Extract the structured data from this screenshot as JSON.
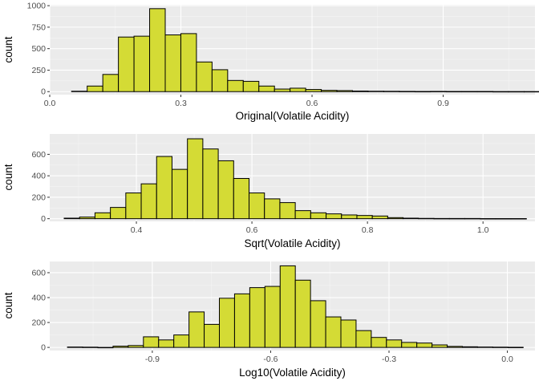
{
  "panel_bg": "#EBEBEB",
  "grid_major": "#FFFFFF",
  "bar_fill": "#D4DB35",
  "bar_stroke": "#000000",
  "chart_data": [
    {
      "type": "bar",
      "xlabel": "Original(Volatile Acidity)",
      "ylabel": "count",
      "xlim": [
        0.0,
        1.11
      ],
      "ylim": [
        -35,
        1010
      ],
      "xticks": [
        0.0,
        0.3,
        0.6,
        0.9
      ],
      "xtick_labels": [
        "0.0",
        "0.3",
        "0.6",
        "0.9"
      ],
      "yticks": [
        0,
        250,
        500,
        750,
        1000
      ],
      "ytick_labels": [
        "0",
        "250",
        "500",
        "750",
        "1000"
      ],
      "bins": {
        "start": 0.05,
        "width": 0.0357,
        "counts": [
          5,
          65,
          200,
          635,
          645,
          965,
          660,
          675,
          345,
          255,
          130,
          120,
          65,
          30,
          40,
          25,
          15,
          12,
          7,
          5,
          4,
          3,
          2,
          3,
          2,
          2,
          2,
          1,
          1,
          1
        ]
      }
    },
    {
      "type": "bar",
      "xlabel": "Sqrt(Volatile Acidity)",
      "ylabel": "count",
      "xlim": [
        0.25,
        1.09
      ],
      "ylim": [
        -25,
        790
      ],
      "xticks": [
        0.4,
        0.6,
        0.8,
        1.0
      ],
      "xtick_labels": [
        "0.4",
        "0.6",
        "0.8",
        "1.0"
      ],
      "yticks": [
        0,
        200,
        400,
        600
      ],
      "ytick_labels": [
        "0",
        "200",
        "400",
        "600"
      ],
      "bins": {
        "start": 0.275,
        "width": 0.02667,
        "counts": [
          5,
          15,
          55,
          105,
          240,
          325,
          580,
          460,
          745,
          650,
          540,
          375,
          240,
          185,
          150,
          75,
          55,
          45,
          35,
          30,
          25,
          10,
          5,
          3,
          2,
          2,
          2,
          1,
          1,
          1
        ]
      }
    },
    {
      "type": "bar",
      "xlabel": "Log10(Volatile Acidity)",
      "ylabel": "count",
      "xlim": [
        -1.16,
        0.07
      ],
      "ylim": [
        -25,
        690
      ],
      "xticks": [
        -0.9,
        -0.6,
        -0.3,
        0.0
      ],
      "xtick_labels": [
        "-0.9",
        "-0.6",
        "-0.3",
        "0.0"
      ],
      "yticks": [
        0,
        200,
        400,
        600
      ],
      "ytick_labels": [
        "0",
        "200",
        "400",
        "600"
      ],
      "bins": {
        "start": -1.115,
        "width": 0.0385,
        "counts": [
          3,
          2,
          0,
          10,
          15,
          85,
          60,
          100,
          285,
          185,
          395,
          430,
          480,
          490,
          655,
          540,
          375,
          245,
          220,
          135,
          80,
          60,
          40,
          35,
          20,
          8,
          5,
          3,
          2,
          1
        ]
      }
    }
  ]
}
